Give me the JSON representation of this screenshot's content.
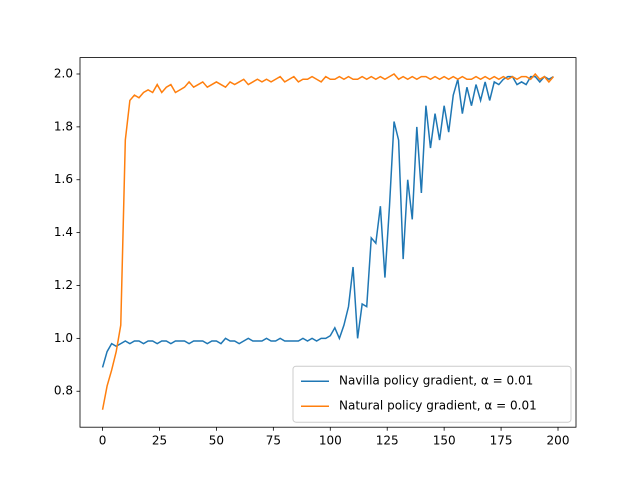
{
  "chart_data": {
    "type": "line",
    "x": [
      0,
      2,
      4,
      6,
      8,
      10,
      12,
      14,
      16,
      18,
      20,
      22,
      24,
      26,
      28,
      30,
      32,
      34,
      36,
      38,
      40,
      42,
      44,
      46,
      48,
      50,
      52,
      54,
      56,
      58,
      60,
      62,
      64,
      66,
      68,
      70,
      72,
      74,
      76,
      78,
      80,
      82,
      84,
      86,
      88,
      90,
      92,
      94,
      96,
      98,
      100,
      102,
      104,
      106,
      108,
      110,
      112,
      114,
      116,
      118,
      120,
      122,
      124,
      126,
      128,
      130,
      132,
      134,
      136,
      138,
      140,
      142,
      144,
      146,
      148,
      150,
      152,
      154,
      156,
      158,
      160,
      162,
      164,
      166,
      168,
      170,
      172,
      174,
      176,
      178,
      180,
      182,
      184,
      186,
      188,
      190,
      192,
      194,
      196,
      198
    ],
    "series": [
      {
        "name": "Navilla policy gradient, α = 0.01",
        "color": "#1f77b4",
        "values": [
          0.89,
          0.95,
          0.98,
          0.97,
          0.98,
          0.99,
          0.98,
          0.99,
          0.99,
          0.98,
          0.99,
          0.99,
          0.98,
          0.99,
          0.99,
          0.98,
          0.99,
          0.99,
          0.99,
          0.98,
          0.99,
          0.99,
          0.99,
          0.98,
          0.99,
          0.99,
          0.98,
          1.0,
          0.99,
          0.99,
          0.98,
          0.99,
          1.0,
          0.99,
          0.99,
          0.99,
          1.0,
          0.99,
          0.99,
          1.0,
          0.99,
          0.99,
          0.99,
          0.99,
          1.0,
          0.99,
          1.0,
          0.99,
          1.0,
          1.0,
          1.01,
          1.04,
          1.0,
          1.05,
          1.12,
          1.27,
          1.0,
          1.13,
          1.12,
          1.38,
          1.36,
          1.5,
          1.23,
          1.5,
          1.82,
          1.75,
          1.3,
          1.6,
          1.45,
          1.8,
          1.55,
          1.88,
          1.72,
          1.85,
          1.75,
          1.88,
          1.78,
          1.92,
          1.98,
          1.85,
          1.95,
          1.88,
          1.96,
          1.9,
          1.97,
          1.9,
          1.97,
          1.96,
          1.98,
          1.99,
          1.99,
          1.96,
          1.97,
          1.96,
          1.99,
          1.99,
          1.97,
          1.99,
          1.98,
          1.99
        ]
      },
      {
        "name": "Natural policy gradient, α = 0.01",
        "color": "#ff7f0e",
        "values": [
          0.73,
          0.82,
          0.88,
          0.95,
          1.05,
          1.75,
          1.9,
          1.92,
          1.91,
          1.93,
          1.94,
          1.93,
          1.96,
          1.93,
          1.95,
          1.96,
          1.93,
          1.94,
          1.95,
          1.97,
          1.95,
          1.96,
          1.97,
          1.95,
          1.96,
          1.97,
          1.96,
          1.95,
          1.97,
          1.96,
          1.97,
          1.98,
          1.96,
          1.97,
          1.98,
          1.97,
          1.98,
          1.97,
          1.98,
          1.99,
          1.97,
          1.98,
          1.99,
          1.97,
          1.98,
          1.98,
          1.99,
          1.98,
          1.97,
          1.99,
          1.98,
          1.98,
          1.99,
          1.98,
          1.99,
          1.98,
          1.98,
          1.99,
          1.98,
          1.99,
          1.98,
          1.99,
          1.98,
          1.99,
          2.0,
          1.98,
          1.99,
          1.98,
          1.99,
          1.98,
          1.99,
          1.99,
          1.98,
          1.99,
          1.98,
          1.99,
          1.98,
          1.99,
          1.98,
          1.99,
          1.98,
          1.98,
          1.99,
          1.98,
          1.99,
          1.98,
          1.99,
          1.98,
          1.99,
          1.98,
          1.99,
          1.98,
          1.99,
          1.99,
          1.98,
          2.0,
          1.98,
          1.99,
          1.97,
          1.99
        ]
      }
    ],
    "xlim": [
      -9.9,
      207.9
    ],
    "xticks": [
      0,
      25,
      50,
      75,
      100,
      125,
      150,
      175,
      200
    ],
    "ylim": [
      0.664,
      2.062
    ],
    "yticks": [
      0.8,
      {
        "value": 1,
        "label": "1.0"
      },
      1.2,
      1.4,
      1.6,
      1.8,
      {
        "value": 2,
        "label": "2.0"
      }
    ],
    "legend": "lower right"
  }
}
